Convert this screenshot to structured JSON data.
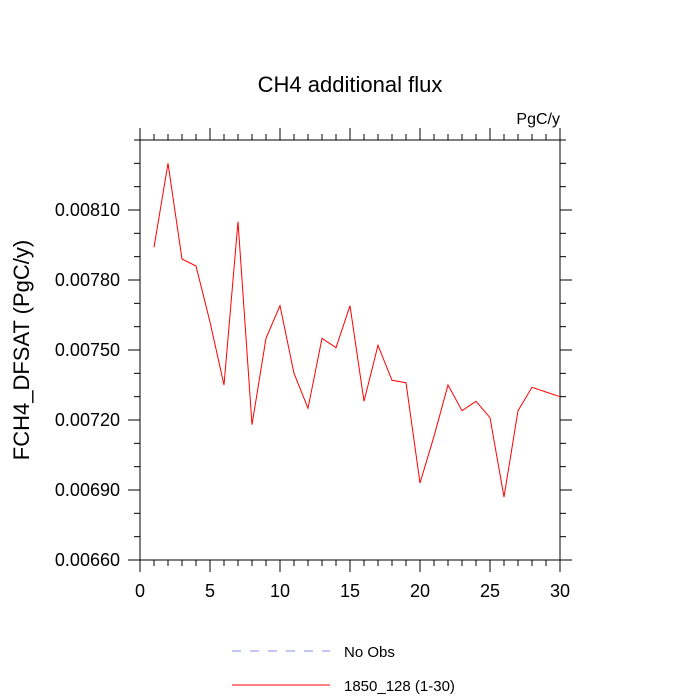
{
  "chart_data": {
    "type": "line",
    "title": "CH4 additional flux",
    "units": "PgC/y",
    "xlabel": "",
    "ylabel": "FCH4_DFSAT  (PgC/y)",
    "xlim": [
      0,
      30
    ],
    "ylim": [
      0.0066,
      0.0084
    ],
    "xticks": [
      0,
      5,
      10,
      15,
      20,
      25,
      30
    ],
    "xtick_labels": [
      "0",
      "5",
      "10",
      "15",
      "20",
      "25",
      "30"
    ],
    "yticks": [
      0.0066,
      0.0069,
      0.0072,
      0.0075,
      0.0078,
      0.0081
    ],
    "ytick_labels": [
      "0.00660",
      "0.00690",
      "0.00720",
      "0.00750",
      "0.00780",
      "0.00810"
    ],
    "grid": false,
    "legend_position": "bottom",
    "legend": [
      {
        "name": "No Obs",
        "color": "#8888ee",
        "style": "dashed"
      },
      {
        "name": "1850_128 (1-30)",
        "color": "#ff0000",
        "style": "solid"
      }
    ],
    "series": [
      {
        "name": "1850_128 (1-30)",
        "color": "#ff0000",
        "x": [
          1,
          2,
          3,
          4,
          5,
          6,
          7,
          8,
          9,
          10,
          11,
          12,
          13,
          14,
          15,
          16,
          17,
          18,
          19,
          20,
          21,
          22,
          23,
          24,
          25,
          26,
          27,
          28,
          29,
          30
        ],
        "values": [
          0.00794,
          0.0083,
          0.00789,
          0.00786,
          0.00762,
          0.00735,
          0.00805,
          0.00718,
          0.00755,
          0.00769,
          0.0074,
          0.00725,
          0.00755,
          0.00751,
          0.00769,
          0.00728,
          0.00752,
          0.00737,
          0.00736,
          0.00693,
          0.00713,
          0.00735,
          0.00724,
          0.00728,
          0.00721,
          0.00687,
          0.00724,
          0.00734,
          0.00732,
          0.0073
        ]
      }
    ]
  }
}
